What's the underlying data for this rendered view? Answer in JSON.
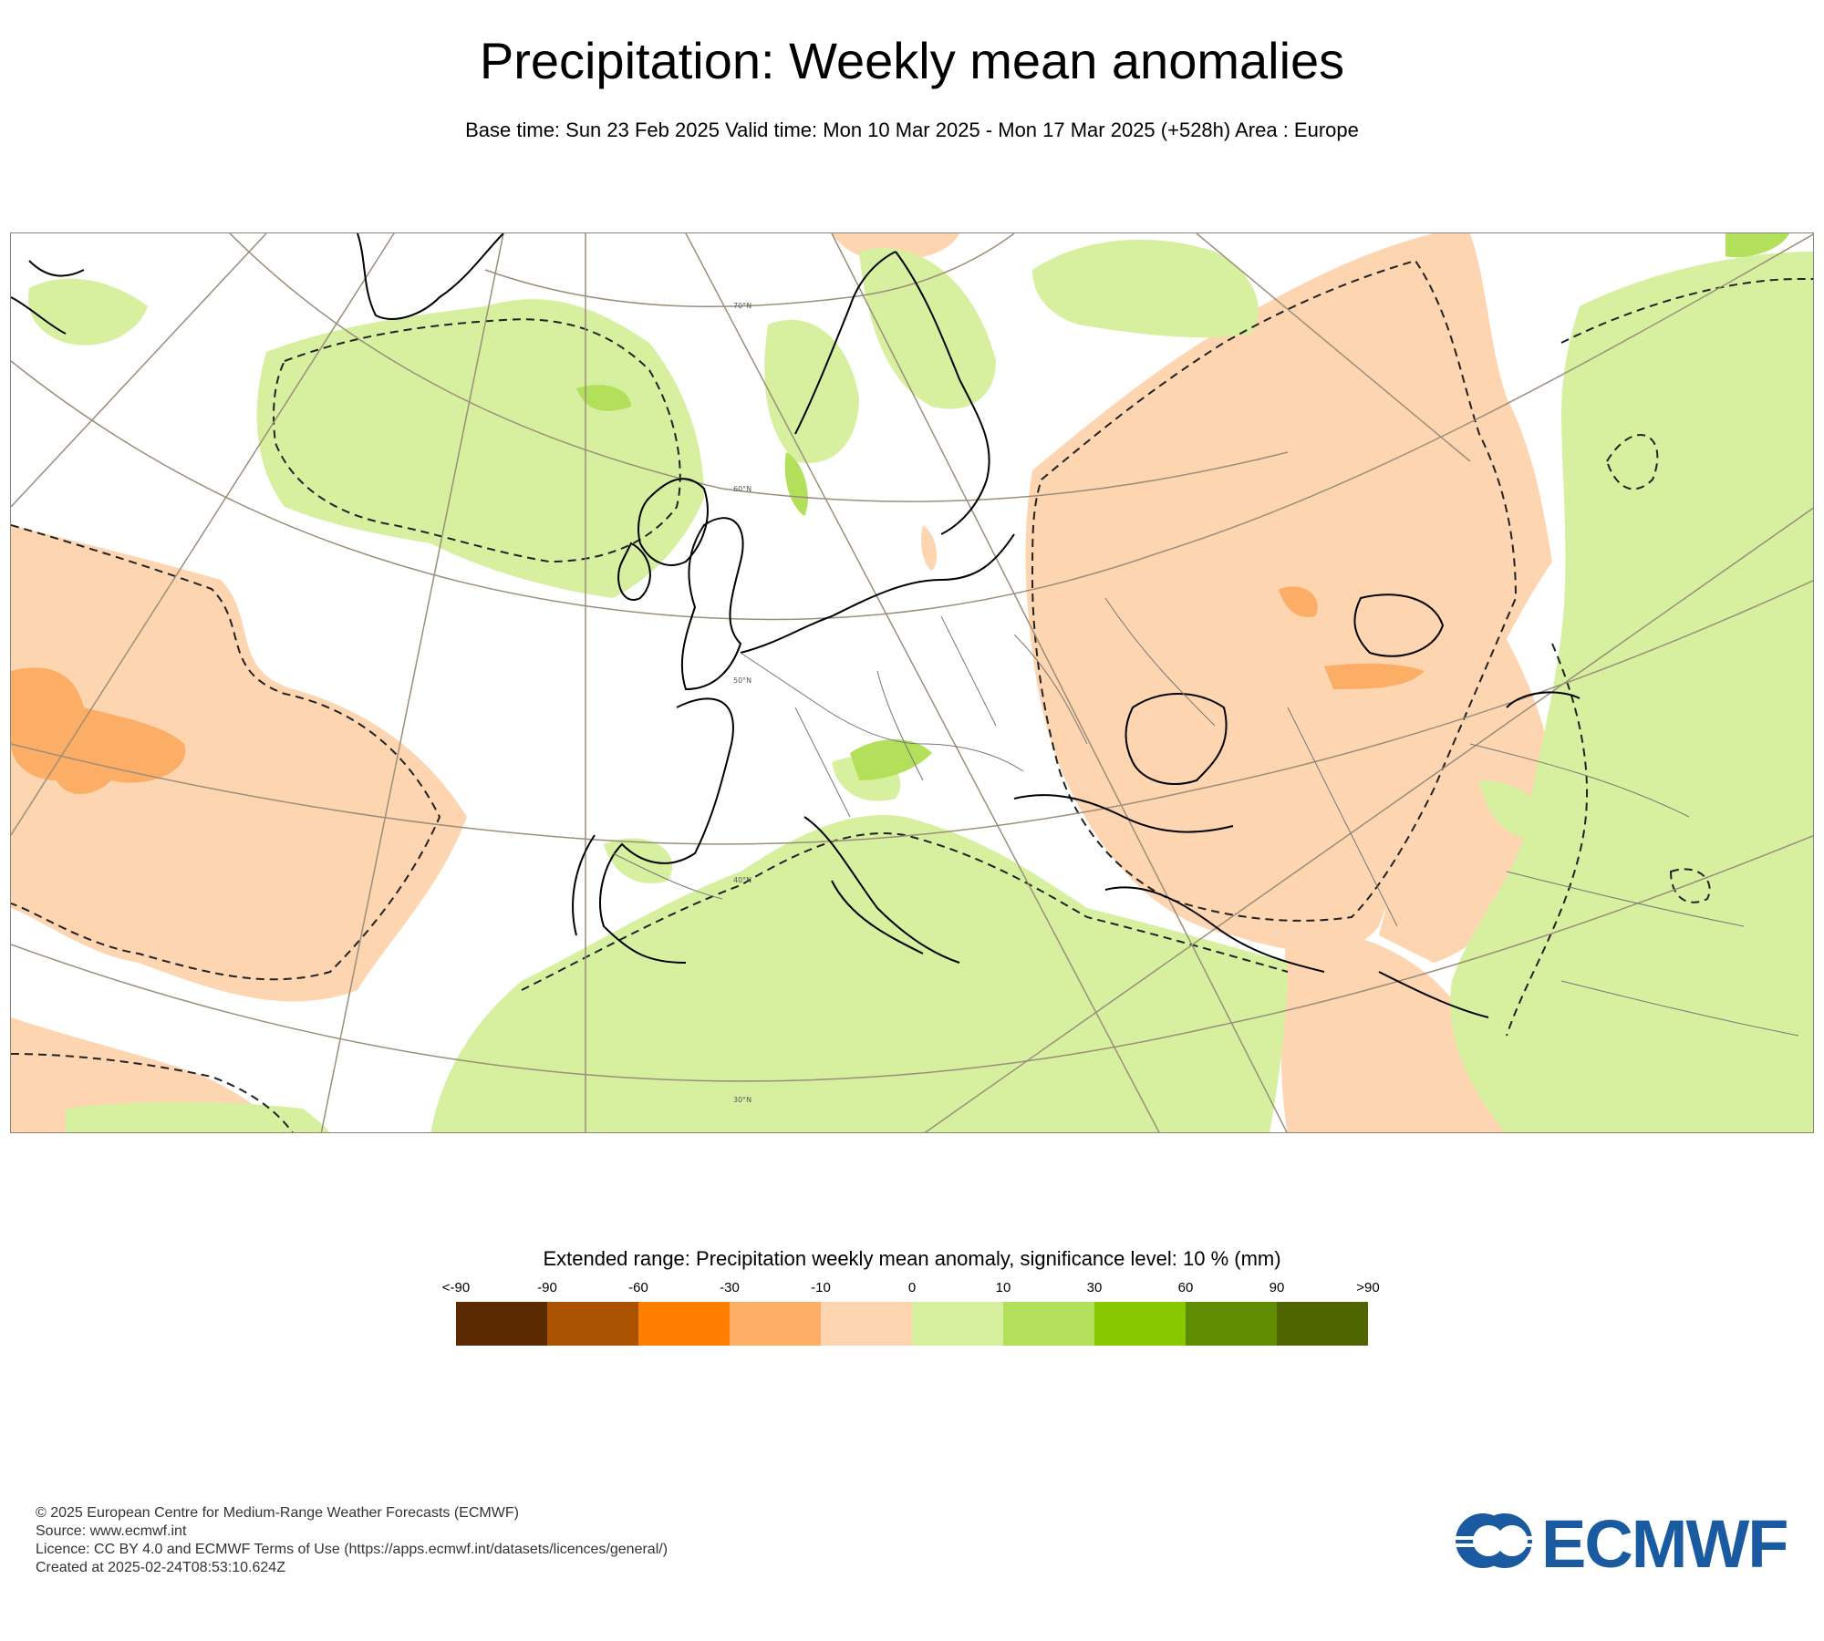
{
  "header": {
    "title": "Precipitation: Weekly mean anomalies",
    "subtitle": "Base time: Sun 23 Feb 2025 Valid time: Mon 10 Mar 2025 - Mon 17 Mar 2025 (+528h) Area : Europe"
  },
  "map": {
    "lat_labels": [
      "70°N",
      "60°N",
      "50°N",
      "40°N",
      "30°N"
    ],
    "colors": {
      "dry_light": "#fdd5b1",
      "dry_medium": "#fdae66",
      "wet_light": "#d7f0a0",
      "wet_medium": "#b3e05a",
      "grid": "#9b8e7a",
      "coast": "#000000",
      "border": "#777777"
    }
  },
  "legend": {
    "title": "Extended range: Precipitation weekly mean anomaly, significance level: 10 % (mm)",
    "ticks": [
      "<-90",
      "-90",
      "-60",
      "-30",
      "-10",
      "0",
      "10",
      "30",
      "60",
      "90",
      ">90"
    ],
    "colors": [
      "#5c2a00",
      "#ab5200",
      "#ff7f00",
      "#fdae66",
      "#fdd5b1",
      "#d7f0a0",
      "#b3e05a",
      "#88c800",
      "#5f8c00",
      "#4f6600"
    ]
  },
  "footer": {
    "line1": "© 2025 European Centre for Medium-Range Weather Forecasts (ECMWF)",
    "line2": "Source: www.ecmwf.int",
    "line3": "Licence: CC BY 4.0 and ECMWF Terms of Use (https://apps.ecmwf.int/datasets/licences/general/)",
    "line4": "Created at 2025-02-24T08:53:10.624Z"
  },
  "logo": {
    "text": "ECMWF"
  }
}
